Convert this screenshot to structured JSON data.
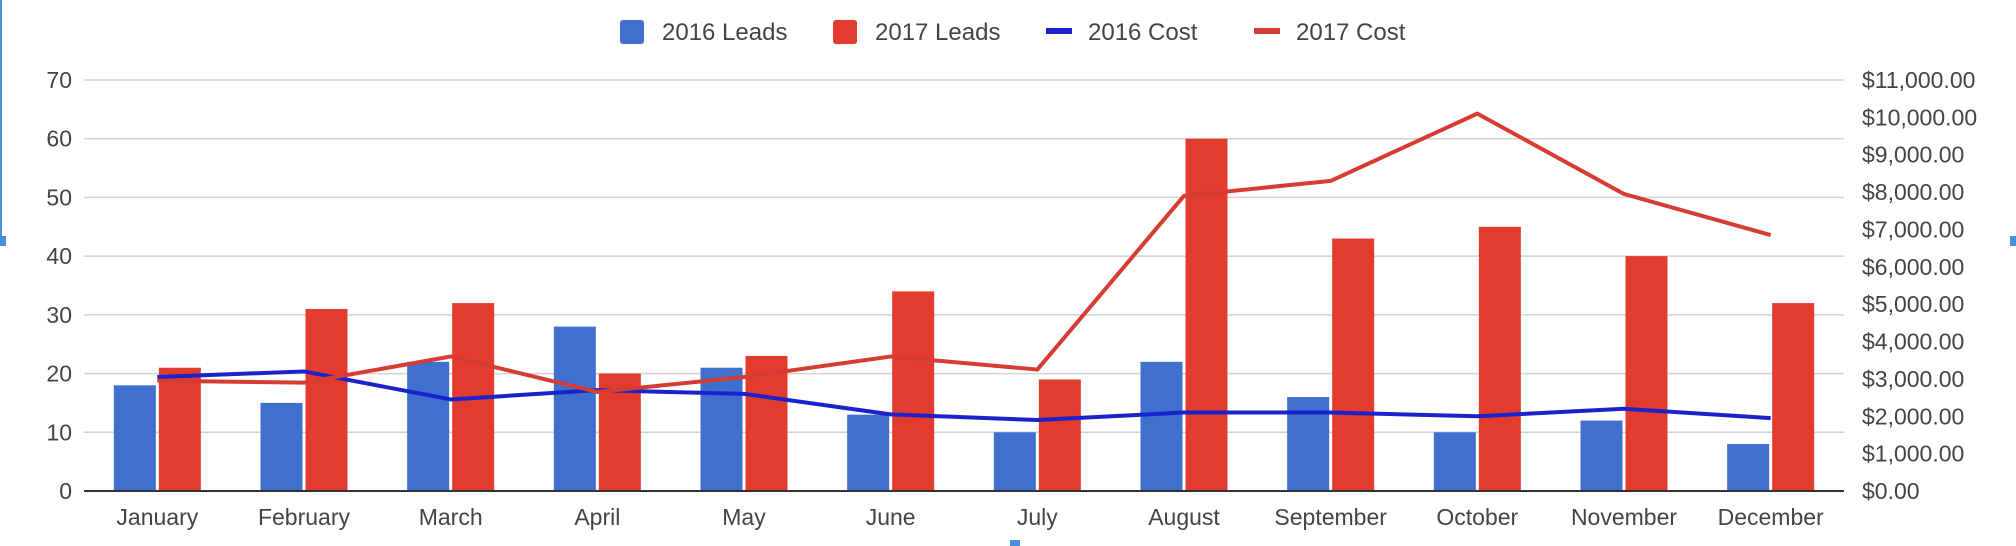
{
  "chart_data": {
    "type": "bar",
    "categories": [
      "January",
      "February",
      "March",
      "April",
      "May",
      "June",
      "July",
      "August",
      "September",
      "October",
      "November",
      "December"
    ],
    "series": [
      {
        "name": "2016 Leads",
        "kind": "bar",
        "axis": "left",
        "color": "#3f6fcf",
        "values": [
          18,
          15,
          22,
          28,
          21,
          13,
          10,
          22,
          16,
          10,
          12,
          8
        ]
      },
      {
        "name": "2017 Leads",
        "kind": "bar",
        "axis": "left",
        "color": "#e33b2e",
        "values": [
          21,
          31,
          32,
          20,
          23,
          34,
          19,
          60,
          43,
          45,
          40,
          32
        ]
      },
      {
        "name": "2016 Cost",
        "kind": "line",
        "axis": "right",
        "color": "#1a22cc",
        "values": [
          3050,
          3200,
          2450,
          2700,
          2600,
          2050,
          1900,
          2100,
          2100,
          2000,
          2200,
          1950
        ]
      },
      {
        "name": "2017 Cost",
        "kind": "line",
        "axis": "right",
        "color": "#d63c33",
        "values": [
          2950,
          2900,
          3600,
          2650,
          3050,
          3600,
          3250,
          7900,
          8300,
          10100,
          7950,
          6850
        ]
      }
    ],
    "y_left": {
      "min": 0,
      "max": 70,
      "ticks": [
        0,
        10,
        20,
        30,
        40,
        50,
        60,
        70
      ]
    },
    "y_right": {
      "min": 0,
      "max": 11000,
      "ticks": [
        "$0.00",
        "$1,000.00",
        "$2,000.00",
        "$3,000.00",
        "$4,000.00",
        "$5,000.00",
        "$6,000.00",
        "$7,000.00",
        "$8,000.00",
        "$9,000.00",
        "$10,000.00",
        "$11,000.00"
      ]
    },
    "legend_position": "top-center",
    "grid": true
  }
}
